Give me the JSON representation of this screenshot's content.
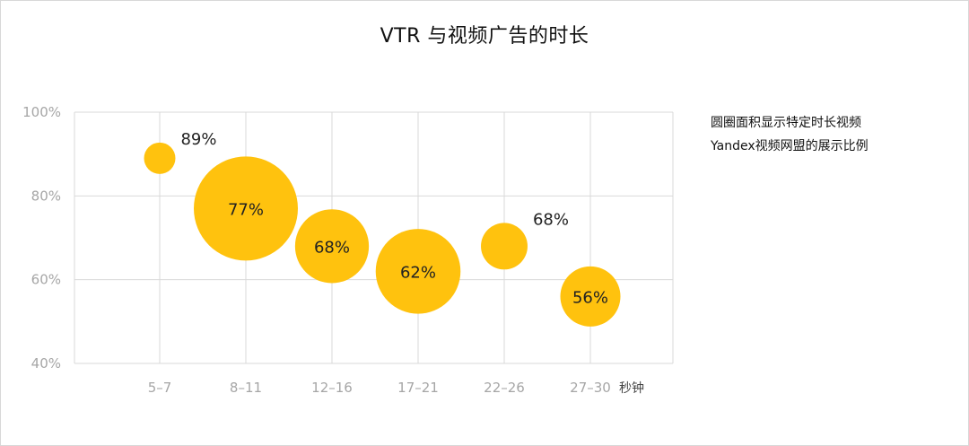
{
  "title": "VTR 与视频广告的时长",
  "note": {
    "line1": "圆圈面积显示特定时长视频",
    "line2": "Yandex视频网盟的展示比例"
  },
  "colors": {
    "bubble": "#FFC20E",
    "grid": "#d9d9d9",
    "tick": "#a6a6a6"
  },
  "chart_data": {
    "type": "scatter",
    "variant": "bubble",
    "title": "VTR 与视频广告的时长",
    "xlabel": "秒钟",
    "ylabel": "",
    "categories": [
      "5–7",
      "8–11",
      "12–16",
      "17–21",
      "22–26",
      "27–30"
    ],
    "y_ticks": [
      "40%",
      "60%",
      "80%",
      "100%"
    ],
    "ylim": [
      40,
      100
    ],
    "grid": true,
    "legend": "none",
    "series": [
      {
        "values": [
          89,
          77,
          68,
          62,
          68,
          56
        ],
        "labels": [
          "89%",
          "77%",
          "68%",
          "62%",
          "68%",
          "56%"
        ],
        "relative_size": [
          0.03,
          1.0,
          0.43,
          0.61,
          0.12,
          0.25
        ]
      }
    ]
  }
}
